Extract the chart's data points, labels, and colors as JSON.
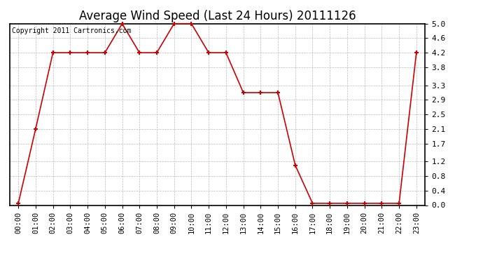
{
  "title": "Average Wind Speed (Last 24 Hours) 20111126",
  "copyright_text": "Copyright 2011 Cartronics.com",
  "x_labels": [
    "00:00",
    "01:00",
    "02:00",
    "03:00",
    "04:00",
    "05:00",
    "06:00",
    "07:00",
    "08:00",
    "09:00",
    "10:00",
    "11:00",
    "12:00",
    "13:00",
    "14:00",
    "15:00",
    "16:00",
    "17:00",
    "18:00",
    "19:00",
    "20:00",
    "21:00",
    "22:00",
    "23:00"
  ],
  "y_values": [
    0.05,
    2.1,
    4.2,
    4.2,
    4.2,
    4.2,
    5.0,
    4.2,
    4.2,
    5.0,
    5.0,
    4.2,
    4.2,
    3.1,
    3.1,
    3.1,
    1.1,
    0.05,
    0.05,
    0.05,
    0.05,
    0.05,
    0.05,
    4.2
  ],
  "line_color": "#cc0000",
  "marker": "+",
  "marker_size": 5,
  "marker_linewidth": 1.5,
  "line_width": 1.2,
  "ylim": [
    0.0,
    5.0
  ],
  "yticks": [
    0.0,
    0.4,
    0.8,
    1.2,
    1.7,
    2.1,
    2.5,
    2.9,
    3.3,
    3.8,
    4.2,
    4.6,
    5.0
  ],
  "background_color": "#ffffff",
  "plot_bg_color": "#ffffff",
  "grid_color": "#bbbbbb",
  "title_fontsize": 12,
  "copyright_fontsize": 7,
  "tick_fontsize": 7.5,
  "ytick_fontsize": 8
}
